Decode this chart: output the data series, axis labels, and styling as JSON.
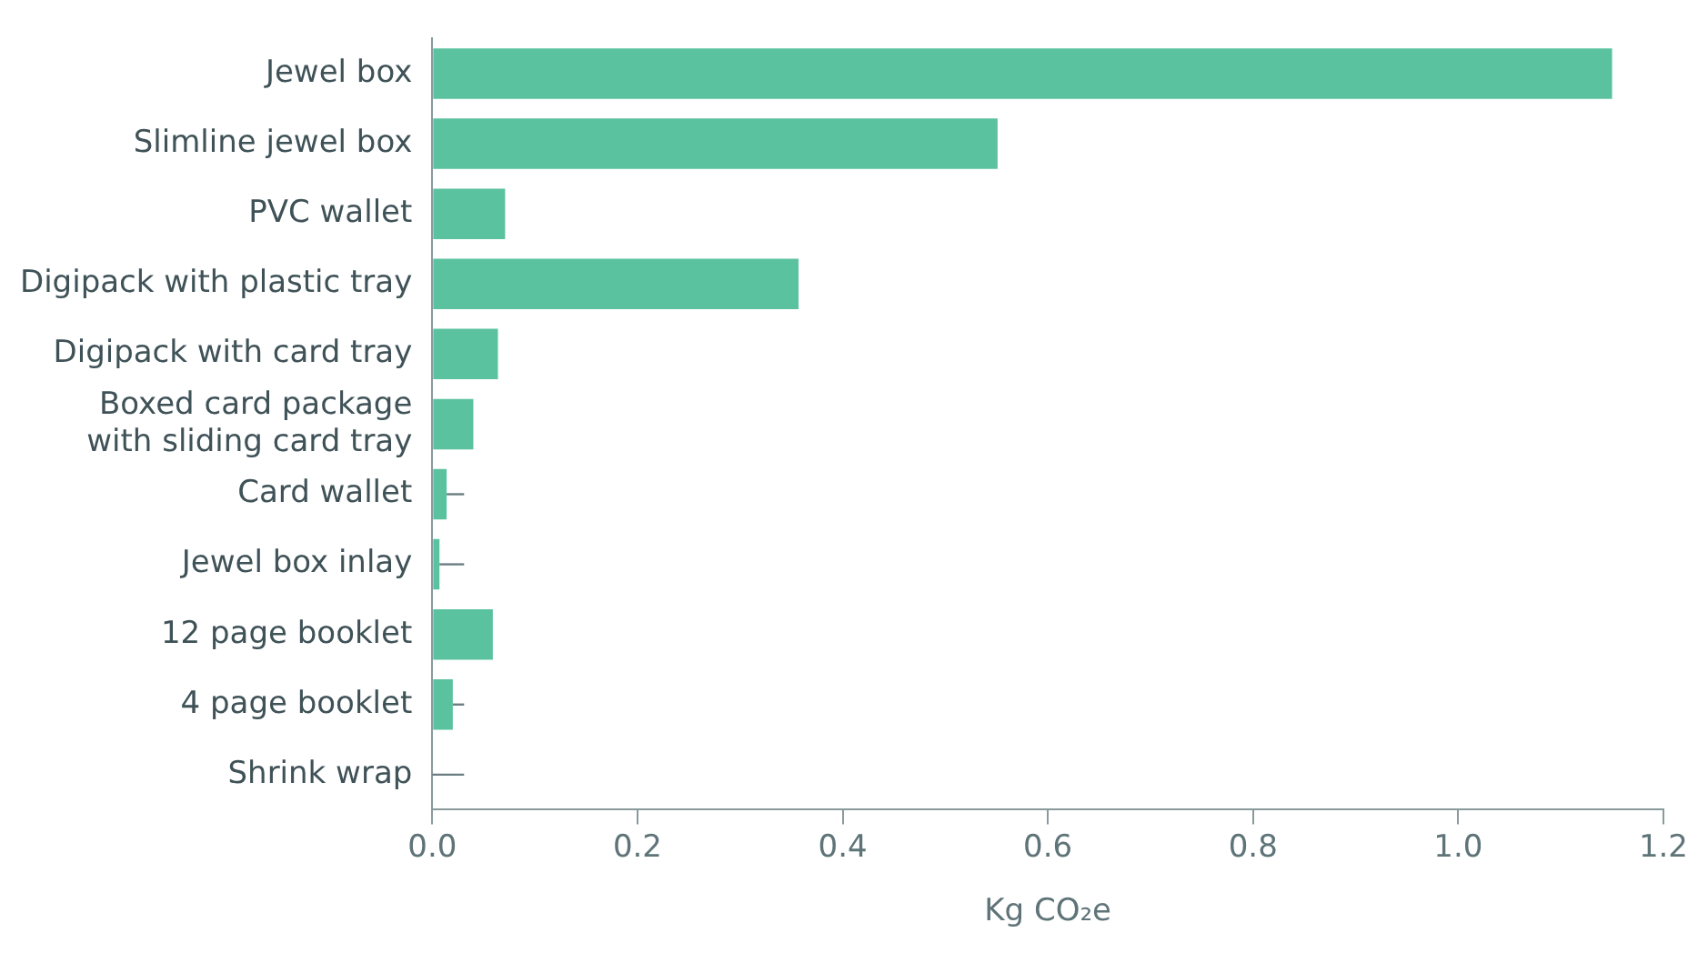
{
  "chart_data": {
    "type": "bar",
    "orientation": "horizontal",
    "xlabel": "Kg CO₂e",
    "categories": [
      "Jewel box",
      "Slimline jewel box",
      "PVC wallet",
      "Digipack with plastic tray",
      "Digipack with card tray",
      "Boxed card package\nwith sliding card tray",
      "Card wallet",
      "Jewel box inlay",
      "12 page booklet",
      "4 page booklet",
      "Shrink wrap"
    ],
    "values": [
      1.15,
      0.551,
      0.071,
      0.357,
      0.064,
      0.04,
      0.014,
      0.007,
      0.059,
      0.02,
      0
    ],
    "errors": [
      null,
      null,
      null,
      null,
      null,
      null,
      [
        0.014,
        0.031
      ],
      [
        0.007,
        0.031
      ],
      null,
      [
        0.02,
        0.031
      ],
      [
        0,
        0.031
      ]
    ],
    "color": "#5bc2a0",
    "xlim": [
      0,
      1.2
    ],
    "xticks": [
      {
        "value": 0,
        "label": "0.0"
      },
      0.2,
      0.4,
      0.6,
      0.8,
      {
        "value": 1,
        "label": "1.0"
      },
      1.2
    ],
    "grid": false
  }
}
